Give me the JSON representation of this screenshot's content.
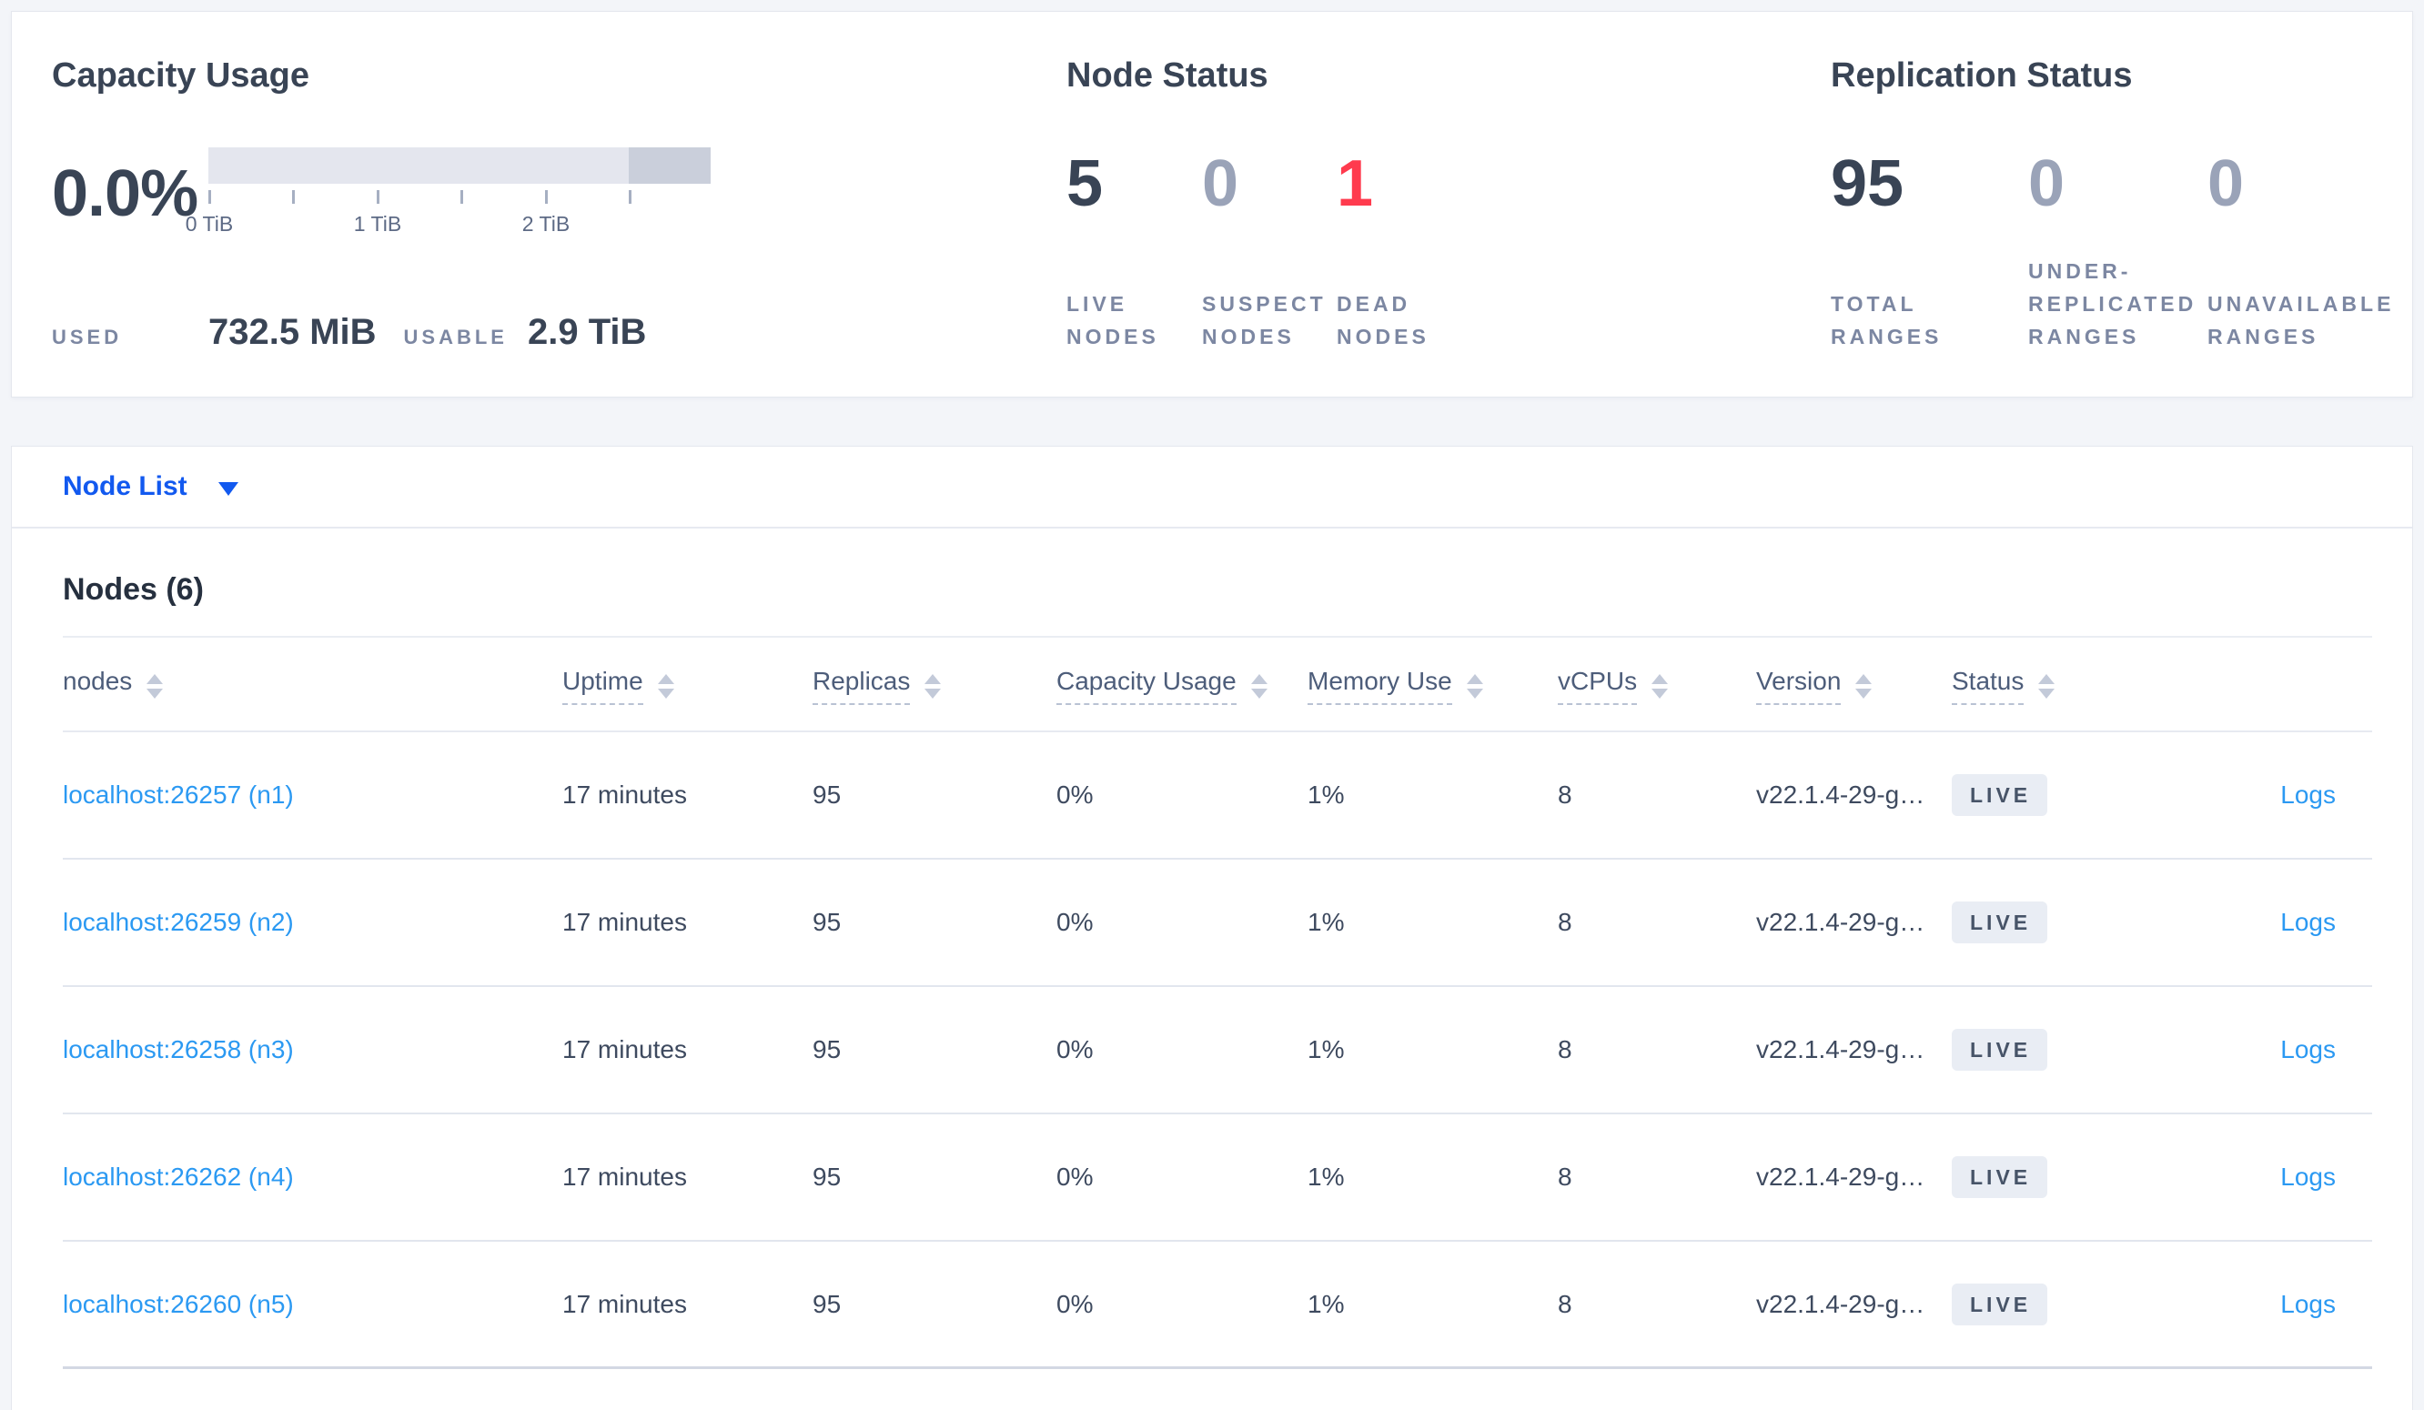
{
  "colors": {
    "primary_blue": "#1259ef",
    "link_blue": "#2b99f2",
    "danger_red": "#ff3b4e",
    "dark_slate": "#394455"
  },
  "summary": {
    "capacity": {
      "title": "Capacity Usage",
      "percent": "0.0%",
      "used_label": "USED",
      "used_value": "732.5 MiB",
      "usable_label": "USABLE",
      "usable_value": "2.9 TiB",
      "tick_labels": [
        "0 TiB",
        "1 TiB",
        "2 TiB"
      ]
    },
    "node_status": {
      "title": "Node Status",
      "stats": [
        {
          "value": "5",
          "label": "LIVE NODES",
          "tone": "dark"
        },
        {
          "value": "0",
          "label": "SUSPECT NODES",
          "tone": "muted"
        },
        {
          "value": "1",
          "label": "DEAD NODES",
          "tone": "red"
        }
      ]
    },
    "replication_status": {
      "title": "Replication Status",
      "stats": [
        {
          "value": "95",
          "label": "TOTAL RANGES",
          "tone": "dark"
        },
        {
          "value": "0",
          "label": "UNDER-REPLICATED RANGES",
          "tone": "muted"
        },
        {
          "value": "0",
          "label": "UNAVAILABLE RANGES",
          "tone": "muted"
        }
      ]
    }
  },
  "view_selector": {
    "label": "Node List"
  },
  "nodes_table": {
    "heading": "Nodes (6)",
    "columns": [
      {
        "id": "nodes",
        "label": "nodes",
        "underlined": false
      },
      {
        "id": "uptime",
        "label": "Uptime",
        "underlined": true
      },
      {
        "id": "replicas",
        "label": "Replicas",
        "underlined": true
      },
      {
        "id": "capacity",
        "label": "Capacity Usage",
        "underlined": true
      },
      {
        "id": "memory",
        "label": "Memory Use",
        "underlined": true
      },
      {
        "id": "vcpus",
        "label": "vCPUs",
        "underlined": true
      },
      {
        "id": "version",
        "label": "Version",
        "underlined": true
      },
      {
        "id": "status",
        "label": "Status",
        "underlined": true
      }
    ],
    "rows": [
      {
        "node": "localhost:26257 (n1)",
        "uptime": "17 minutes",
        "replicas": "95",
        "capacity": "0%",
        "memory": "1%",
        "vcpus": "8",
        "version": "v22.1.4-29-g…",
        "status": "LIVE",
        "logs": "Logs"
      },
      {
        "node": "localhost:26259 (n2)",
        "uptime": "17 minutes",
        "replicas": "95",
        "capacity": "0%",
        "memory": "1%",
        "vcpus": "8",
        "version": "v22.1.4-29-g…",
        "status": "LIVE",
        "logs": "Logs"
      },
      {
        "node": "localhost:26258 (n3)",
        "uptime": "17 minutes",
        "replicas": "95",
        "capacity": "0%",
        "memory": "1%",
        "vcpus": "8",
        "version": "v22.1.4-29-g…",
        "status": "LIVE",
        "logs": "Logs"
      },
      {
        "node": "localhost:26262 (n4)",
        "uptime": "17 minutes",
        "replicas": "95",
        "capacity": "0%",
        "memory": "1%",
        "vcpus": "8",
        "version": "v22.1.4-29-g…",
        "status": "LIVE",
        "logs": "Logs"
      },
      {
        "node": "localhost:26260 (n5)",
        "uptime": "17 minutes",
        "replicas": "95",
        "capacity": "0%",
        "memory": "1%",
        "vcpus": "8",
        "version": "v22.1.4-29-g…",
        "status": "LIVE",
        "logs": "Logs"
      }
    ]
  }
}
